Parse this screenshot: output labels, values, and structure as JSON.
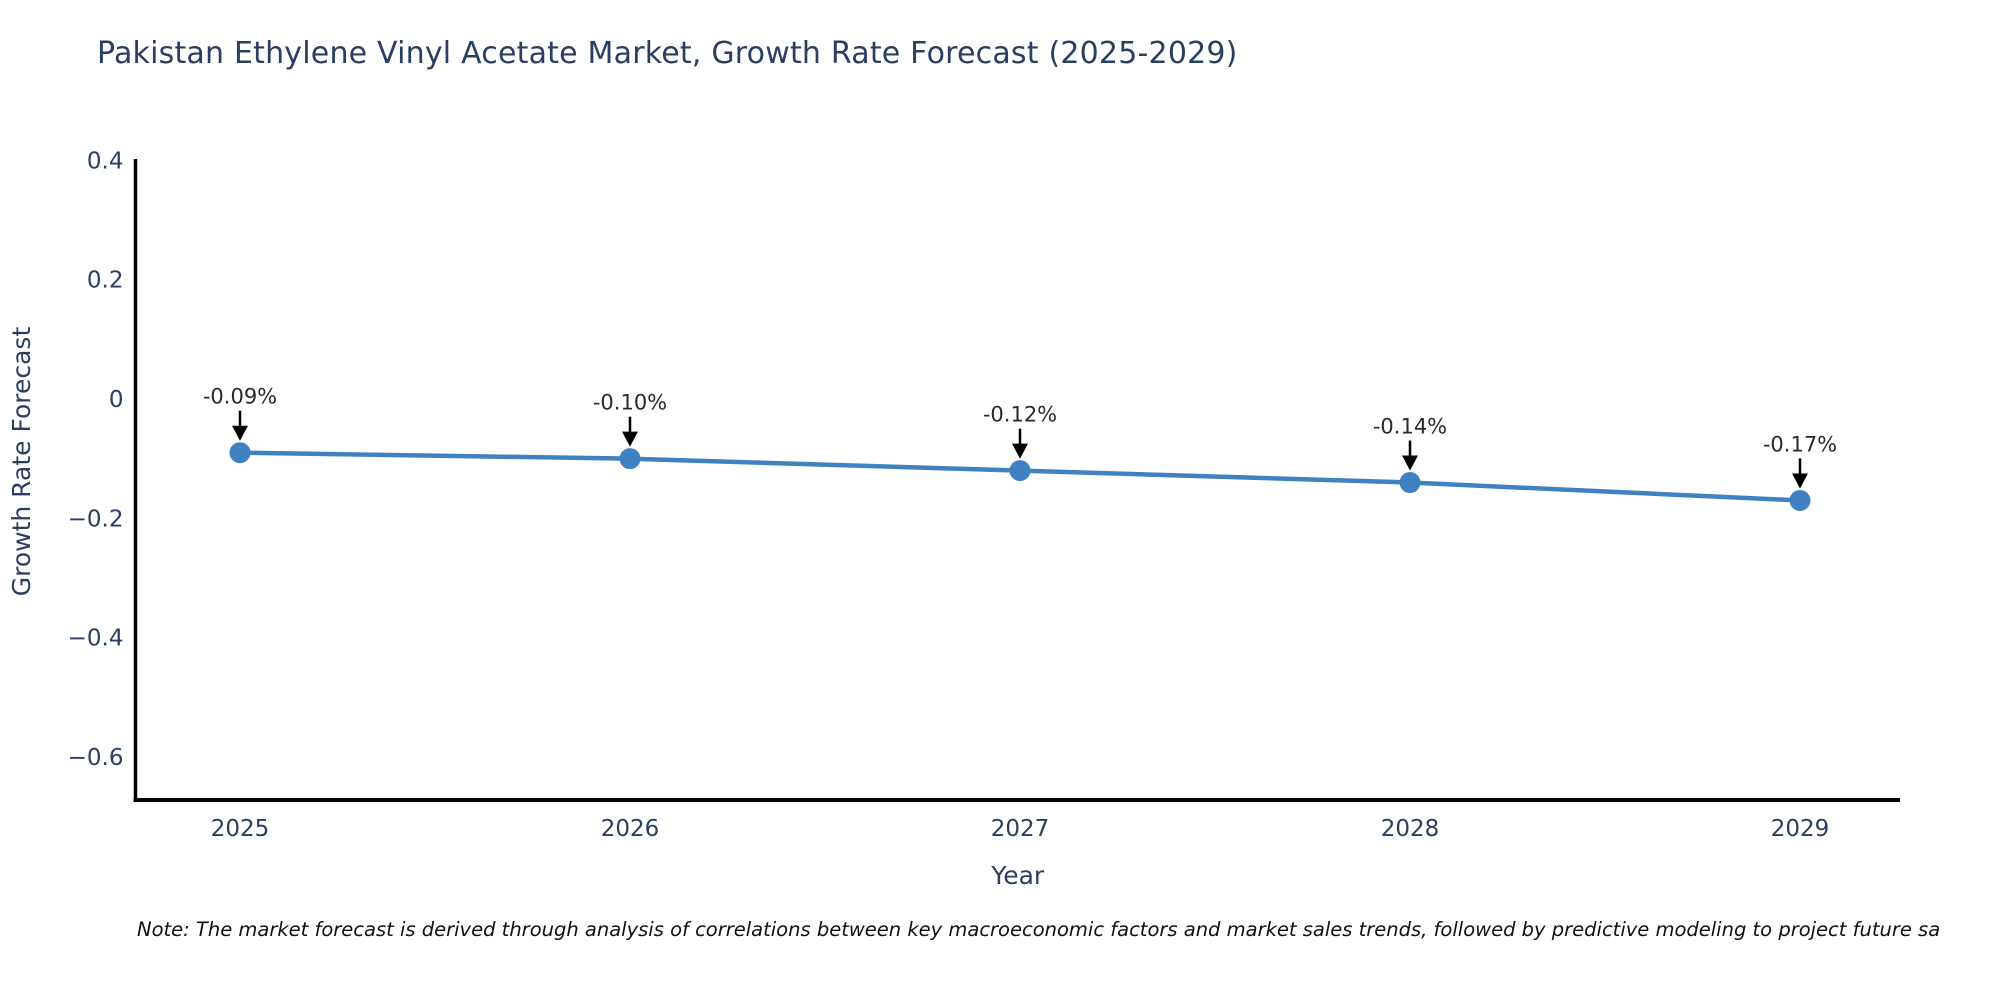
{
  "header": {
    "title": "Pakistan Ethylene Vinyl Acetate Market, Growth Rate Forecast (2025-2029)"
  },
  "footnote": {
    "text": "Note: The market forecast is derived through analysis of correlations between key macroeconomic factors and market sales trends, followed by predictive modeling to project future sa"
  },
  "colors": {
    "line": "#3f81c1",
    "marker": "#3f81c1",
    "axis_line": "#000000",
    "axis_text": "#2a3f5f",
    "annotation_text": "#2a2a2a",
    "annotation_arrow": "#000000",
    "background": "#ffffff"
  },
  "chart_data": {
    "type": "line",
    "title": "Pakistan Ethylene Vinyl Acetate Market, Growth Rate Forecast (2025-2029)",
    "xlabel": "Year",
    "ylabel": "Growth Rate Forecast",
    "x": [
      2025,
      2026,
      2027,
      2028,
      2029
    ],
    "series": [
      {
        "name": "Growth Rate Forecast",
        "values": [
          -0.09,
          -0.1,
          -0.12,
          -0.14,
          -0.17
        ],
        "point_labels": [
          "-0.09%",
          "-0.10%",
          "-0.12%",
          "-0.14%",
          "-0.17%"
        ]
      }
    ],
    "yticks": [
      0.4,
      0.2,
      0,
      -0.2,
      -0.4,
      -0.6
    ],
    "xticks": [
      "2025",
      "2026",
      "2027",
      "2028",
      "2029"
    ],
    "ylim": [
      -0.67,
      0.4
    ],
    "grid": false,
    "legend_position": "none",
    "annotations": "each point labeled above with a black downward arrow",
    "marker": "circle",
    "line_shape": "linear"
  }
}
